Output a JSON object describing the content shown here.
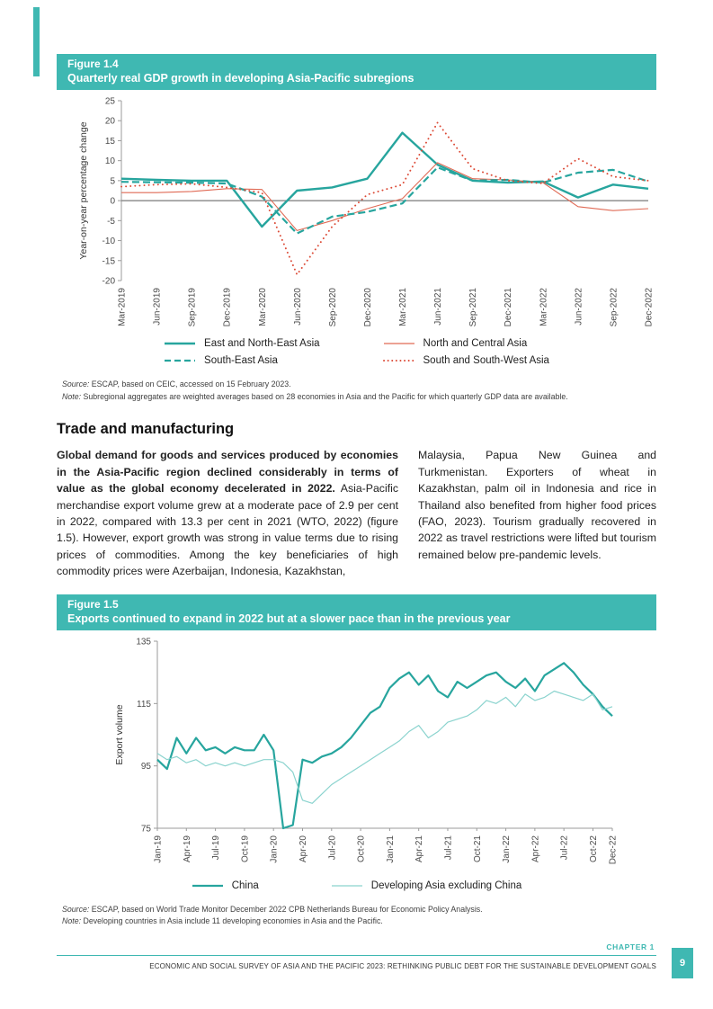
{
  "colors": {
    "teal_banner": "#3FB8B2",
    "teal_line": "#27A59E",
    "teal_light": "#8AD3CE",
    "red_line": "#E06A55",
    "red_dotted": "#DC4A36"
  },
  "figure_1_4": {
    "label": "Figure 1.4",
    "title": "Quarterly real GDP growth in developing Asia-Pacific subregions",
    "source_label": "Source:",
    "source_text": "ESCAP, based on CEIC, accessed on 15 February 2023.",
    "note_label": "Note:",
    "note_text": "Subregional aggregates are weighted averages based on 28 economies in Asia and the Pacific for which quarterly GDP data are available."
  },
  "section": {
    "heading": "Trade and manufacturing",
    "left_bold": "Global demand for goods and services produced by economies in the Asia-Pacific region declined considerably in terms of value as the global economy decelerated in 2022.",
    "left_rest": "Asia-Pacific merchandise export volume grew at a moderate pace of 2.9 per cent in 2022, compared with 13.3 per cent in 2021 (WTO, 2022) (figure 1.5).  However, export growth was strong in value terms due to rising prices of commodities. Among the key beneficiaries of high commodity prices were Azerbaijan, Indonesia, Kazakhstan,",
    "right": "Malaysia, Papua New Guinea and Turkmenistan. Exporters of wheat in Kazakhstan, palm oil in Indonesia and rice in Thailand also benefited from higher food prices (FAO, 2023). Tourism gradually recovered in 2022 as travel restrictions were lifted but tourism remained below pre-pandemic levels."
  },
  "figure_1_5": {
    "label": "Figure 1.5",
    "title": "Exports continued to expand in 2022 but at a slower pace than in the previous year",
    "source_label": "Source:",
    "source_text": "ESCAP, based on World Trade Monitor December 2022 CPB Netherlands Bureau for Economic Policy Analysis.",
    "note_label": "Note:",
    "note_text": "Developing countries in Asia include 11 developing economies in Asia and the Pacific."
  },
  "footer": {
    "chapter_label": "CHAPTER 1",
    "text": "ECONOMIC AND SOCIAL SURVEY OF ASIA AND THE PACIFIC 2023: RETHINKING PUBLIC DEBT FOR THE SUSTAINABLE DEVELOPMENT GOALS",
    "page_number": "9"
  },
  "chart_data": [
    {
      "type": "line",
      "title": "Quarterly real GDP growth in developing Asia-Pacific subregions",
      "ylabel": "Year-on-year percentage change",
      "ylim": [
        -20,
        25
      ],
      "yticks": [
        25,
        20,
        15,
        10,
        5,
        0,
        -5,
        -10,
        -15,
        -20
      ],
      "zero_line": true,
      "bottom_axis": false,
      "legend_position": "bottom",
      "categories": [
        "Mar-2019",
        "Jun-2019",
        "Sep-2019",
        "Dec-2019",
        "Mar-2020",
        "Jun-2020",
        "Sep-2020",
        "Dec-2020",
        "Mar-2021",
        "Jun-2021",
        "Sep-2021",
        "Dec-2021",
        "Mar-2022",
        "Jun-2022",
        "Sep-2022",
        "Dec-2022"
      ],
      "series": [
        {
          "name": "East and North-East Asia",
          "color": "#27A59E",
          "width": 2.4,
          "dash": "solid",
          "values": [
            5.5,
            5.2,
            5.0,
            5.0,
            -6.5,
            2.5,
            3.3,
            5.5,
            17.0,
            9.0,
            5.0,
            4.5,
            4.8,
            0.8,
            4.0,
            3.0
          ]
        },
        {
          "name": "North and Central Asia",
          "color": "#E06A55",
          "width": 1.1,
          "dash": "solid",
          "values": [
            2.0,
            2.0,
            2.3,
            3.0,
            2.8,
            -7.5,
            -5.0,
            -2.0,
            0.5,
            9.5,
            5.5,
            5.2,
            4.5,
            -1.5,
            -2.5,
            -2.0
          ]
        },
        {
          "name": "South-East Asia",
          "color": "#27A59E",
          "width": 2.2,
          "dash": "dashed",
          "values": [
            4.7,
            4.6,
            4.5,
            4.3,
            1.0,
            -8.2,
            -4.0,
            -2.8,
            -0.7,
            8.3,
            5.0,
            5.2,
            4.5,
            7.0,
            7.7,
            4.8
          ]
        },
        {
          "name": "South and South-West Asia",
          "color": "#DC4A36",
          "width": 1.9,
          "dash": "dotted",
          "values": [
            3.5,
            4.0,
            4.2,
            3.3,
            2.0,
            -18.5,
            -6.5,
            1.5,
            4.0,
            19.5,
            8.0,
            5.0,
            4.3,
            10.5,
            6.0,
            5.0
          ]
        }
      ]
    },
    {
      "type": "line",
      "title": "Exports continued to expand in 2022 but at a slower pace than in the previous year",
      "ylabel": "Export volume",
      "ylim": [
        75,
        135
      ],
      "yticks": [
        135,
        115,
        95,
        75
      ],
      "zero_line": false,
      "bottom_axis": true,
      "legend_position": "bottom",
      "x_tick_indices": [
        0,
        3,
        6,
        9,
        12,
        15,
        18,
        21,
        24,
        27,
        30,
        33,
        36,
        39,
        42,
        45,
        47
      ],
      "x_tick_labels": [
        "Jan-19",
        "Apr-19",
        "Jul-19",
        "Oct-19",
        "Jan-20",
        "Apr-20",
        "Jul-20",
        "Oct-20",
        "Jan-21",
        "Apr-21",
        "Jul-21",
        "Oct-21",
        "Jan-22",
        "Apr-22",
        "Jul-22",
        "Oct-22",
        "Dec-22"
      ],
      "series": [
        {
          "name": "China",
          "color": "#27A59E",
          "width": 2.2,
          "dash": "solid",
          "values": [
            97,
            94,
            104,
            99,
            104,
            100,
            101,
            99,
            101,
            100,
            100,
            105,
            100,
            75,
            76,
            97,
            96,
            98,
            99,
            101,
            104,
            108,
            112,
            114,
            120,
            123,
            125,
            121,
            124,
            119,
            117,
            122,
            120,
            122,
            124,
            125,
            122,
            120,
            123,
            119,
            124,
            126,
            128,
            125,
            121,
            118,
            114,
            111
          ]
        },
        {
          "name": "Developing Asia excluding China",
          "color": "#8AD3CE",
          "width": 1.2,
          "dash": "solid",
          "values": [
            99,
            97,
            98,
            96,
            97,
            95,
            96,
            95,
            96,
            95,
            96,
            97,
            97,
            96,
            93,
            84,
            83,
            86,
            89,
            91,
            93,
            95,
            97,
            99,
            101,
            103,
            106,
            108,
            104,
            106,
            109,
            110,
            111,
            113,
            116,
            115,
            117,
            114,
            118,
            116,
            117,
            119,
            118,
            117,
            116,
            118,
            113,
            114
          ]
        }
      ]
    }
  ]
}
